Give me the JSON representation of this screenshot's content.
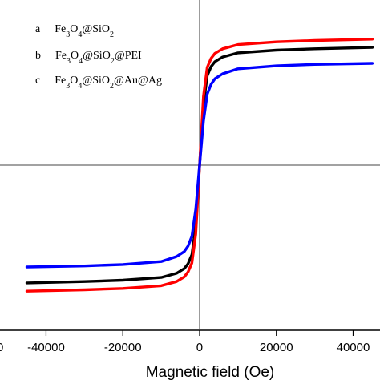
{
  "chart_data": {
    "type": "line",
    "title": "",
    "xlabel": "Magnetic field (Oe)",
    "ylabel": "",
    "xlim": [
      -52000,
      47000
    ],
    "ylim": [
      -60,
      60
    ],
    "x_ticks": [
      -40000,
      -20000,
      0,
      20000,
      40000
    ],
    "x_tick_labels": [
      "-40000",
      "-20000",
      "0",
      "20000",
      "40000"
    ],
    "edge_tick_label": "0",
    "grid": false,
    "legend_position": "top-left",
    "series": [
      {
        "id": "a",
        "label_parts": [
          [
            "Fe",
            false
          ],
          [
            "3",
            true
          ],
          [
            "O",
            false
          ],
          [
            "4",
            true
          ],
          [
            "@SiO",
            false
          ],
          [
            "2",
            true
          ]
        ],
        "color": "#000000",
        "x": [
          -45000,
          -30000,
          -20000,
          -10000,
          -6000,
          -4000,
          -3000,
          -2000,
          -1000,
          0,
          1000,
          2000,
          3000,
          4000,
          6000,
          10000,
          20000,
          30000,
          45000
        ],
        "y": [
          -42.8,
          -42.3,
          -41.8,
          -40.8,
          -39.3,
          -37.6,
          -35.8,
          -32.5,
          -22.0,
          0,
          22.0,
          32.5,
          35.8,
          37.6,
          39.3,
          40.8,
          41.8,
          42.3,
          42.8
        ]
      },
      {
        "id": "b",
        "label_parts": [
          [
            "Fe",
            false
          ],
          [
            "3",
            true
          ],
          [
            "O",
            false
          ],
          [
            "4",
            true
          ],
          [
            "@SiO",
            false
          ],
          [
            "2",
            true
          ],
          [
            "@PEI",
            false
          ]
        ],
        "color": "#ff0000",
        "x": [
          -45000,
          -30000,
          -20000,
          -10000,
          -6000,
          -4000,
          -3000,
          -2000,
          -1000,
          0,
          1000,
          2000,
          3000,
          4000,
          6000,
          10000,
          20000,
          30000,
          45000
        ],
        "y": [
          -45.8,
          -45.3,
          -44.8,
          -43.8,
          -42.3,
          -40.6,
          -38.8,
          -35.5,
          -25.0,
          0,
          25.0,
          35.5,
          38.8,
          40.6,
          42.3,
          43.8,
          44.8,
          45.3,
          45.8
        ]
      },
      {
        "id": "c",
        "label_parts": [
          [
            "Fe",
            false
          ],
          [
            "3",
            true
          ],
          [
            "O",
            false
          ],
          [
            "4",
            true
          ],
          [
            "@SiO",
            false
          ],
          [
            "2",
            true
          ],
          [
            "@Au@Ag",
            false
          ]
        ],
        "color": "#0000ff",
        "x": [
          -45000,
          -30000,
          -20000,
          -10000,
          -6000,
          -4000,
          -3000,
          -2000,
          -1000,
          0,
          1000,
          2000,
          3000,
          4000,
          6000,
          10000,
          20000,
          30000,
          45000
        ],
        "y": [
          -37.0,
          -36.6,
          -36.1,
          -35.0,
          -33.2,
          -31.4,
          -29.4,
          -25.8,
          -16.0,
          0,
          16.0,
          25.8,
          29.4,
          31.4,
          33.2,
          35.0,
          36.1,
          36.6,
          37.0
        ]
      }
    ]
  }
}
